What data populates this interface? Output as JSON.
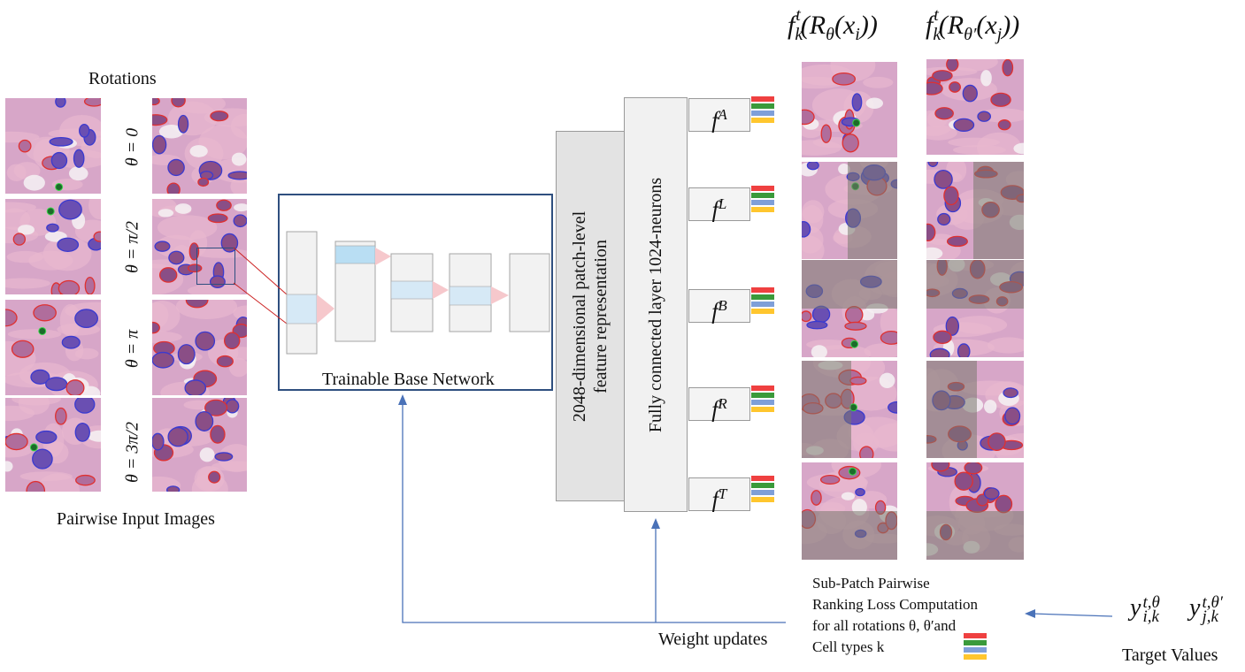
{
  "left": {
    "rotations_title": "Rotations",
    "caption": "Pairwise Input Images",
    "rotation_labels": [
      "θ = 0",
      "θ = π/2",
      "θ = π",
      "θ = 3π/2"
    ]
  },
  "network": {
    "label": "Trainable Base Network",
    "feature_box_label_line1": "2048-dimensional patch-level",
    "feature_box_label_line2": "feature representation",
    "fc_label": "Fully connected layer 1024-neurons"
  },
  "heads": [
    {
      "symbol": "f",
      "superscript": "A"
    },
    {
      "symbol": "f",
      "superscript": "L"
    },
    {
      "symbol": "f",
      "superscript": "B"
    },
    {
      "symbol": "f",
      "superscript": "R"
    },
    {
      "symbol": "f",
      "superscript": "T"
    }
  ],
  "colors": {
    "red": "#ef4040",
    "green": "#3a9a3a",
    "blue": "#7f9fd8",
    "yellow": "#ffc62e",
    "arrow": "#4a72b8",
    "frame": "#2f4f7f"
  },
  "right": {
    "header_left": "f_k^t(R_θ(x_i))",
    "header_right": "f_k^t(R_θ′(x_j))"
  },
  "loss": {
    "line1": "Sub-Patch Pairwise",
    "line2": "Ranking Loss Computation",
    "line3": "for all rotations θ, θ′and",
    "line4": "Cell types k"
  },
  "weight_updates": "Weight updates",
  "targets": {
    "caption": "Target Values",
    "y_i": "y_{i,k}^{t,θ}",
    "y_j": "y_{j,k}^{t,θ′}"
  }
}
